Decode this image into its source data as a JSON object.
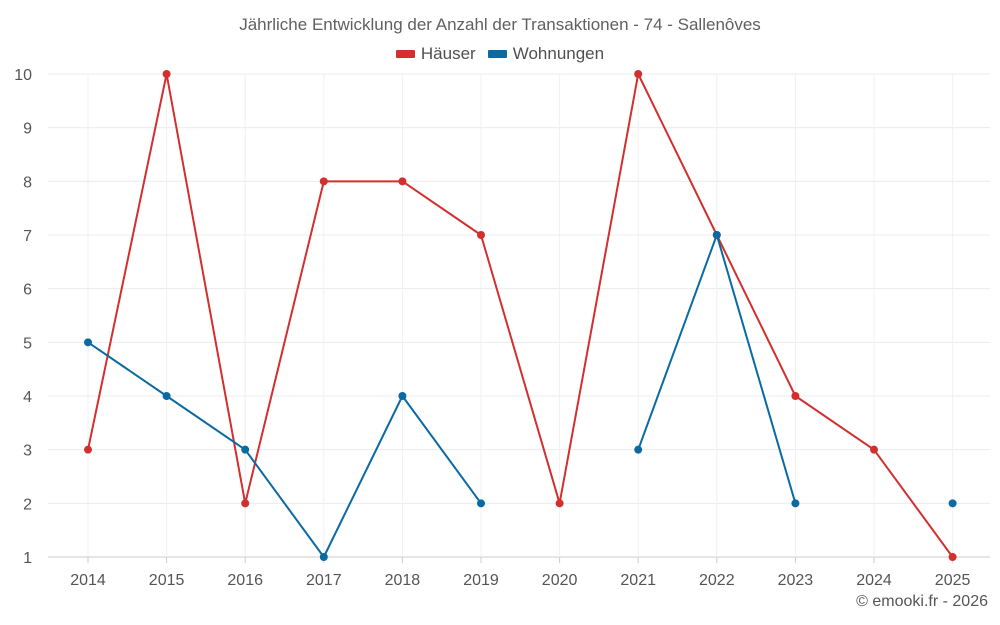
{
  "chart_data": {
    "type": "line",
    "title": "Jährliche Entwicklung der Anzahl der Transaktionen - 74 - Sallenôves",
    "categories": [
      "2014",
      "2015",
      "2016",
      "2017",
      "2018",
      "2019",
      "2020",
      "2021",
      "2022",
      "2023",
      "2024",
      "2025"
    ],
    "series": [
      {
        "name": "Häuser",
        "color": "#d32f2f",
        "values": [
          3,
          10,
          2,
          8,
          8,
          7,
          2,
          10,
          7,
          4,
          3,
          1
        ]
      },
      {
        "name": "Wohnungen",
        "color": "#0a6aa1",
        "values": [
          5,
          4,
          3,
          1,
          4,
          2,
          null,
          3,
          7,
          2,
          null,
          2
        ]
      }
    ],
    "ylim": [
      1,
      10
    ],
    "yticks": [
      1,
      2,
      3,
      4,
      5,
      6,
      7,
      8,
      9,
      10
    ],
    "grid": true,
    "legend_position": "top-center",
    "xlabel": "",
    "ylabel": ""
  },
  "credit": "© emooki.fr - 2026"
}
